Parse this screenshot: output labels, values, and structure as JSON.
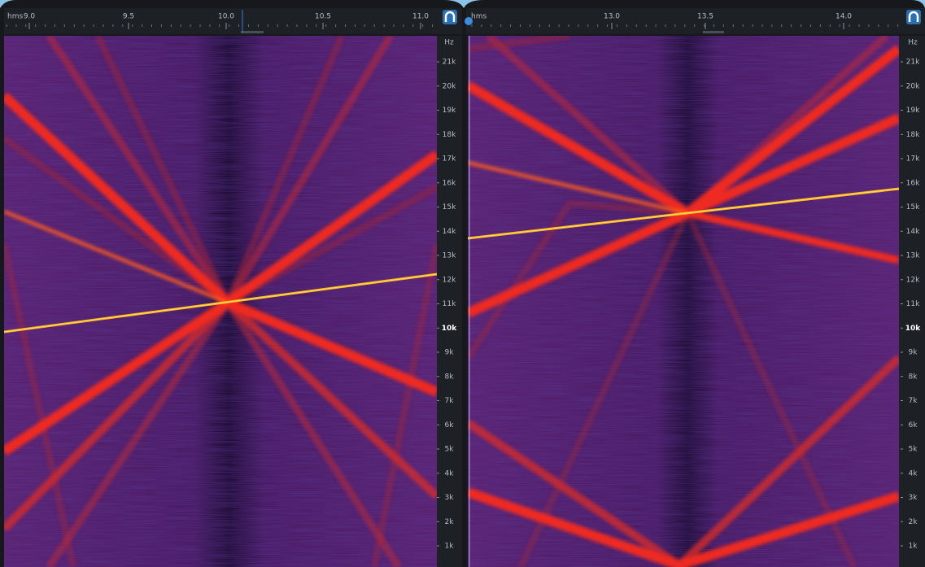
{
  "panels": [
    {
      "ruler": {
        "unit": "hms",
        "ticks": [
          "9.0",
          "9.5",
          "10.0",
          "10.5",
          "11.0"
        ]
      },
      "freq_axis": {
        "unit": "Hz",
        "labels": [
          "21k",
          "20k",
          "19k",
          "18k",
          "17k",
          "16k",
          "15k",
          "14k",
          "13k",
          "12k",
          "11k",
          "10k",
          "9k",
          "8k",
          "7k",
          "6k",
          "5k",
          "4k",
          "3k",
          "2k",
          "1k"
        ]
      }
    },
    {
      "ruler": {
        "unit": "hms",
        "ticks": [
          "13.0",
          "13.5",
          "14.0"
        ]
      },
      "freq_axis": {
        "unit": "Hz",
        "labels": [
          "21k",
          "20k",
          "19k",
          "18k",
          "17k",
          "16k",
          "15k",
          "14k",
          "13k",
          "12k",
          "11k",
          "10k",
          "9k",
          "8k",
          "7k",
          "6k",
          "5k",
          "4k",
          "3k",
          "2k",
          "1k"
        ]
      }
    }
  ]
}
